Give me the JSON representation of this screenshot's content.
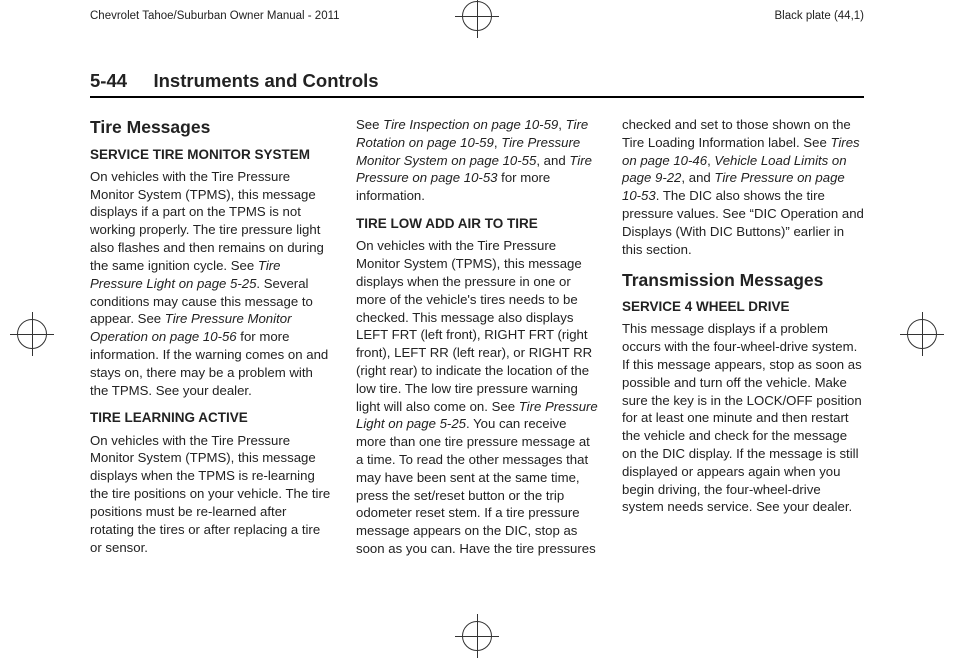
{
  "header": {
    "left": "Chevrolet Tahoe/Suburban Owner Manual - 2011",
    "right": "Black plate (44,1)"
  },
  "section": {
    "page_number": "5-44",
    "title": "Instruments and Controls"
  },
  "col1": {
    "h2": "Tire Messages",
    "h3a": "SERVICE TIRE MONITOR SYSTEM",
    "p1a": "On vehicles with the Tire Pressure Monitor System (TPMS), this message displays if a part on the TPMS is not working properly. The tire pressure light also flashes and then remains on during the same ignition cycle. See ",
    "p1i1": "Tire Pressure Light on page 5-25",
    "p1b": ". Several conditions may cause this message to appear. See ",
    "p1i2": "Tire Pressure Monitor Operation on page 10-56",
    "p1c": " for more information. If the warning comes on and stays on, there may be a problem with the TPMS. See your dealer.",
    "h3b": "TIRE LEARNING ACTIVE",
    "p2": "On vehicles with the Tire Pressure Monitor System (TPMS), this message displays when the TPMS is re-learning the tire positions on your vehicle. The tire positions must be re-learned after rotating the tires or after replacing a tire or sensor."
  },
  "col2": {
    "p1a": "See ",
    "p1i1": "Tire Inspection on page 10-59",
    "p1s1": ", ",
    "p1i2": "Tire Rotation on page 10-59",
    "p1s2": ", ",
    "p1i3": "Tire Pressure Monitor System on page 10-55",
    "p1s3": ", and ",
    "p1i4": "Tire Pressure on page 10-53",
    "p1b": " for more information.",
    "h3a": "TIRE LOW ADD AIR TO TIRE",
    "p2a": "On vehicles with the Tire Pressure Monitor System (TPMS), this message displays when the pressure in one or more of the vehicle's tires needs to be checked. This message also displays LEFT FRT (left front), RIGHT FRT (right front), LEFT RR (left rear), or RIGHT RR (right rear) to indicate the location of the low tire. The low tire pressure warning light will also come on. See ",
    "p2i1": "Tire Pressure Light on page 5-25",
    "p2b": ". You can receive more than one tire pressure message at a time. To read the other messages that may have been sent at the same time, press the set/reset button or the trip odometer reset stem. If a tire pressure message appears on the DIC, stop as soon as you can. Have the tire pressures"
  },
  "col3": {
    "p1a": "checked and set to those shown on the Tire Loading Information label. See ",
    "p1i1": "Tires on page 10-46",
    "p1s1": ", ",
    "p1i2": "Vehicle Load Limits on page 9-22",
    "p1s2": ", and ",
    "p1i3": "Tire Pressure on page 10-53",
    "p1b": ". The DIC also shows the tire pressure values. See “DIC Operation and Displays (With DIC Buttons)” earlier in this section.",
    "h2": "Transmission Messages",
    "h3a": "SERVICE 4 WHEEL DRIVE",
    "p2": "This message displays if a problem occurs with the four-wheel-drive system. If this message appears, stop as soon as possible and turn off the vehicle. Make sure the key is in the LOCK/OFF position for at least one minute and then restart the vehicle and check for the message on the DIC display. If the message is still displayed or appears again when you begin driving, the four-wheel-drive system needs service. See your dealer."
  }
}
